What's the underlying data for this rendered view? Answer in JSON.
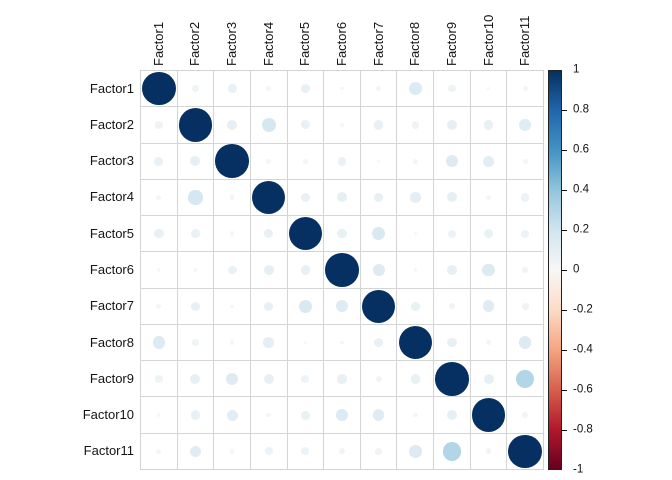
{
  "figure": {
    "kind": "correlation matrix plot (circle method)",
    "background": "#ffffff"
  },
  "chart_data": {
    "type": "heatmap",
    "variant": "correlation-circle-matrix",
    "title": "",
    "xlabel": "",
    "ylabel": "",
    "grid": true,
    "legend_position": "right",
    "value_range": [
      -1,
      1
    ],
    "row_labels": [
      "Factor1",
      "Factor2",
      "Factor3",
      "Factor4",
      "Factor5",
      "Factor6",
      "Factor7",
      "Factor8",
      "Factor9",
      "Factor10",
      "Factor11"
    ],
    "col_labels": [
      "Factor1",
      "Factor2",
      "Factor3",
      "Factor4",
      "Factor5",
      "Factor6",
      "Factor7",
      "Factor8",
      "Factor9",
      "Factor10",
      "Factor11"
    ],
    "matrix": [
      [
        1.0,
        0.05,
        0.07,
        0.02,
        0.08,
        0.01,
        0.02,
        0.14,
        0.05,
        0.01,
        0.02
      ],
      [
        0.05,
        1.0,
        0.09,
        0.18,
        0.07,
        0.01,
        0.08,
        0.05,
        0.09,
        0.08,
        0.12
      ],
      [
        0.07,
        0.09,
        1.0,
        0.02,
        0.02,
        0.07,
        0.01,
        0.02,
        0.13,
        0.11,
        0.02
      ],
      [
        0.02,
        0.18,
        0.02,
        1.0,
        0.08,
        0.09,
        0.08,
        0.1,
        0.09,
        0.02,
        0.06
      ],
      [
        0.08,
        0.07,
        0.02,
        0.08,
        1.0,
        0.08,
        0.16,
        0.01,
        0.06,
        0.07,
        0.06
      ],
      [
        0.01,
        0.01,
        0.07,
        0.09,
        0.08,
        1.0,
        0.13,
        0.01,
        0.08,
        0.14,
        0.03
      ],
      [
        0.02,
        0.08,
        0.01,
        0.08,
        0.16,
        0.13,
        1.0,
        0.08,
        0.03,
        0.12,
        0.04
      ],
      [
        0.14,
        0.05,
        0.02,
        0.1,
        0.01,
        0.01,
        0.08,
        1.0,
        0.08,
        0.02,
        0.14
      ],
      [
        0.05,
        0.09,
        0.13,
        0.09,
        0.06,
        0.08,
        0.03,
        0.08,
        1.0,
        0.09,
        0.3
      ],
      [
        0.01,
        0.08,
        0.11,
        0.02,
        0.07,
        0.14,
        0.12,
        0.02,
        0.09,
        1.0,
        0.03
      ],
      [
        0.02,
        0.12,
        0.02,
        0.06,
        0.06,
        0.03,
        0.04,
        0.14,
        0.3,
        0.03,
        1.0
      ]
    ],
    "colorbar": {
      "tick_labels": [
        "1",
        "0.8",
        "0.6",
        "0.4",
        "0.2",
        "0",
        "-0.2",
        "-0.4",
        "-0.6",
        "-0.8",
        "-1"
      ],
      "tick_values": [
        1,
        0.8,
        0.6,
        0.4,
        0.2,
        0,
        -0.2,
        -0.4,
        -0.6,
        -0.8,
        -1
      ]
    },
    "palette_stops": [
      {
        "v": 1.0,
        "color": "#053061"
      },
      {
        "v": 0.8,
        "color": "#2166AC"
      },
      {
        "v": 0.6,
        "color": "#4393C3"
      },
      {
        "v": 0.4,
        "color": "#92C5DE"
      },
      {
        "v": 0.2,
        "color": "#D1E5F0"
      },
      {
        "v": 0.0,
        "color": "#F7F7F7"
      },
      {
        "v": -0.2,
        "color": "#FDDBC7"
      },
      {
        "v": -0.4,
        "color": "#F4A582"
      },
      {
        "v": -0.6,
        "color": "#D6604D"
      },
      {
        "v": -0.8,
        "color": "#B2182B"
      },
      {
        "v": -1.0,
        "color": "#67001F"
      }
    ],
    "colors": {
      "grid_line": "#d4d4d4",
      "label_text": "#141414",
      "colorbar_border": "#222222",
      "tick_color": "#111111",
      "diagonal_circle": "#053061"
    }
  }
}
